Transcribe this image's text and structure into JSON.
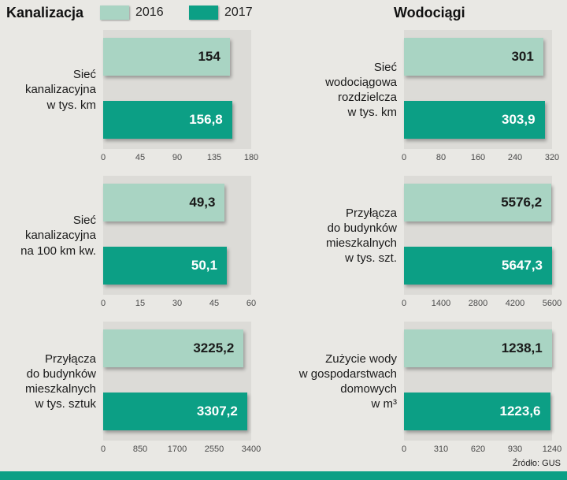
{
  "header": {
    "left_title": "Kanalizacja",
    "right_title": "Wodociągi"
  },
  "legend": {
    "items": [
      {
        "label": "2016",
        "color": "#a9d4c3"
      },
      {
        "label": "2017",
        "color": "#0c9f85"
      }
    ]
  },
  "footer": {
    "source": "Źródło: GUS"
  },
  "chart_data": [
    {
      "type": "bar",
      "column": "kanalizacja",
      "label": "Sieć\nkanalizacyjna\nw tys. km",
      "xlim": [
        0,
        180
      ],
      "ticks": [
        "0",
        "45",
        "90",
        "135",
        "180"
      ],
      "series": [
        {
          "name": "2016",
          "value": 154,
          "display": "154"
        },
        {
          "name": "2017",
          "value": 156.8,
          "display": "156,8"
        }
      ]
    },
    {
      "type": "bar",
      "column": "kanalizacja",
      "label": "Sieć\nkanalizacyjna\nna 100 km kw.",
      "xlim": [
        0,
        60
      ],
      "ticks": [
        "0",
        "15",
        "30",
        "45",
        "60"
      ],
      "series": [
        {
          "name": "2016",
          "value": 49.3,
          "display": "49,3"
        },
        {
          "name": "2017",
          "value": 50.1,
          "display": "50,1"
        }
      ]
    },
    {
      "type": "bar",
      "column": "kanalizacja",
      "label": "Przyłącza\ndo budynków\nmieszkalnych\nw tys. sztuk",
      "xlim": [
        0,
        3400
      ],
      "ticks": [
        "0",
        "850",
        "1700",
        "2550",
        "3400"
      ],
      "series": [
        {
          "name": "2016",
          "value": 3225.2,
          "display": "3225,2"
        },
        {
          "name": "2017",
          "value": 3307.2,
          "display": "3307,2"
        }
      ]
    },
    {
      "type": "bar",
      "column": "wodociagi",
      "label": "Sieć\nwodociągowa\nrozdzielcza\nw tys. km",
      "xlim": [
        0,
        320
      ],
      "ticks": [
        "0",
        "80",
        "160",
        "240",
        "320"
      ],
      "series": [
        {
          "name": "2016",
          "value": 301,
          "display": "301"
        },
        {
          "name": "2017",
          "value": 303.9,
          "display": "303,9"
        }
      ]
    },
    {
      "type": "bar",
      "column": "wodociagi",
      "label": "Przyłącza\ndo budynków\nmieszkalnych\nw tys. szt.",
      "xlim": [
        0,
        5600
      ],
      "ticks": [
        "0",
        "1400",
        "2800",
        "4200",
        "5600"
      ],
      "series": [
        {
          "name": "2016",
          "value": 5576.2,
          "display": "5576,2"
        },
        {
          "name": "2017",
          "value": 5647.3,
          "display": "5647,3"
        }
      ]
    },
    {
      "type": "bar",
      "column": "wodociagi",
      "label": "Zużycie wody\nw gospodarstwach\ndomowych\nw m³",
      "xlim": [
        0,
        1240
      ],
      "ticks": [
        "0",
        "310",
        "620",
        "930",
        "1240"
      ],
      "series": [
        {
          "name": "2016",
          "value": 1238.1,
          "display": "1238,1"
        },
        {
          "name": "2017",
          "value": 1223.6,
          "display": "1223,6"
        }
      ]
    }
  ]
}
